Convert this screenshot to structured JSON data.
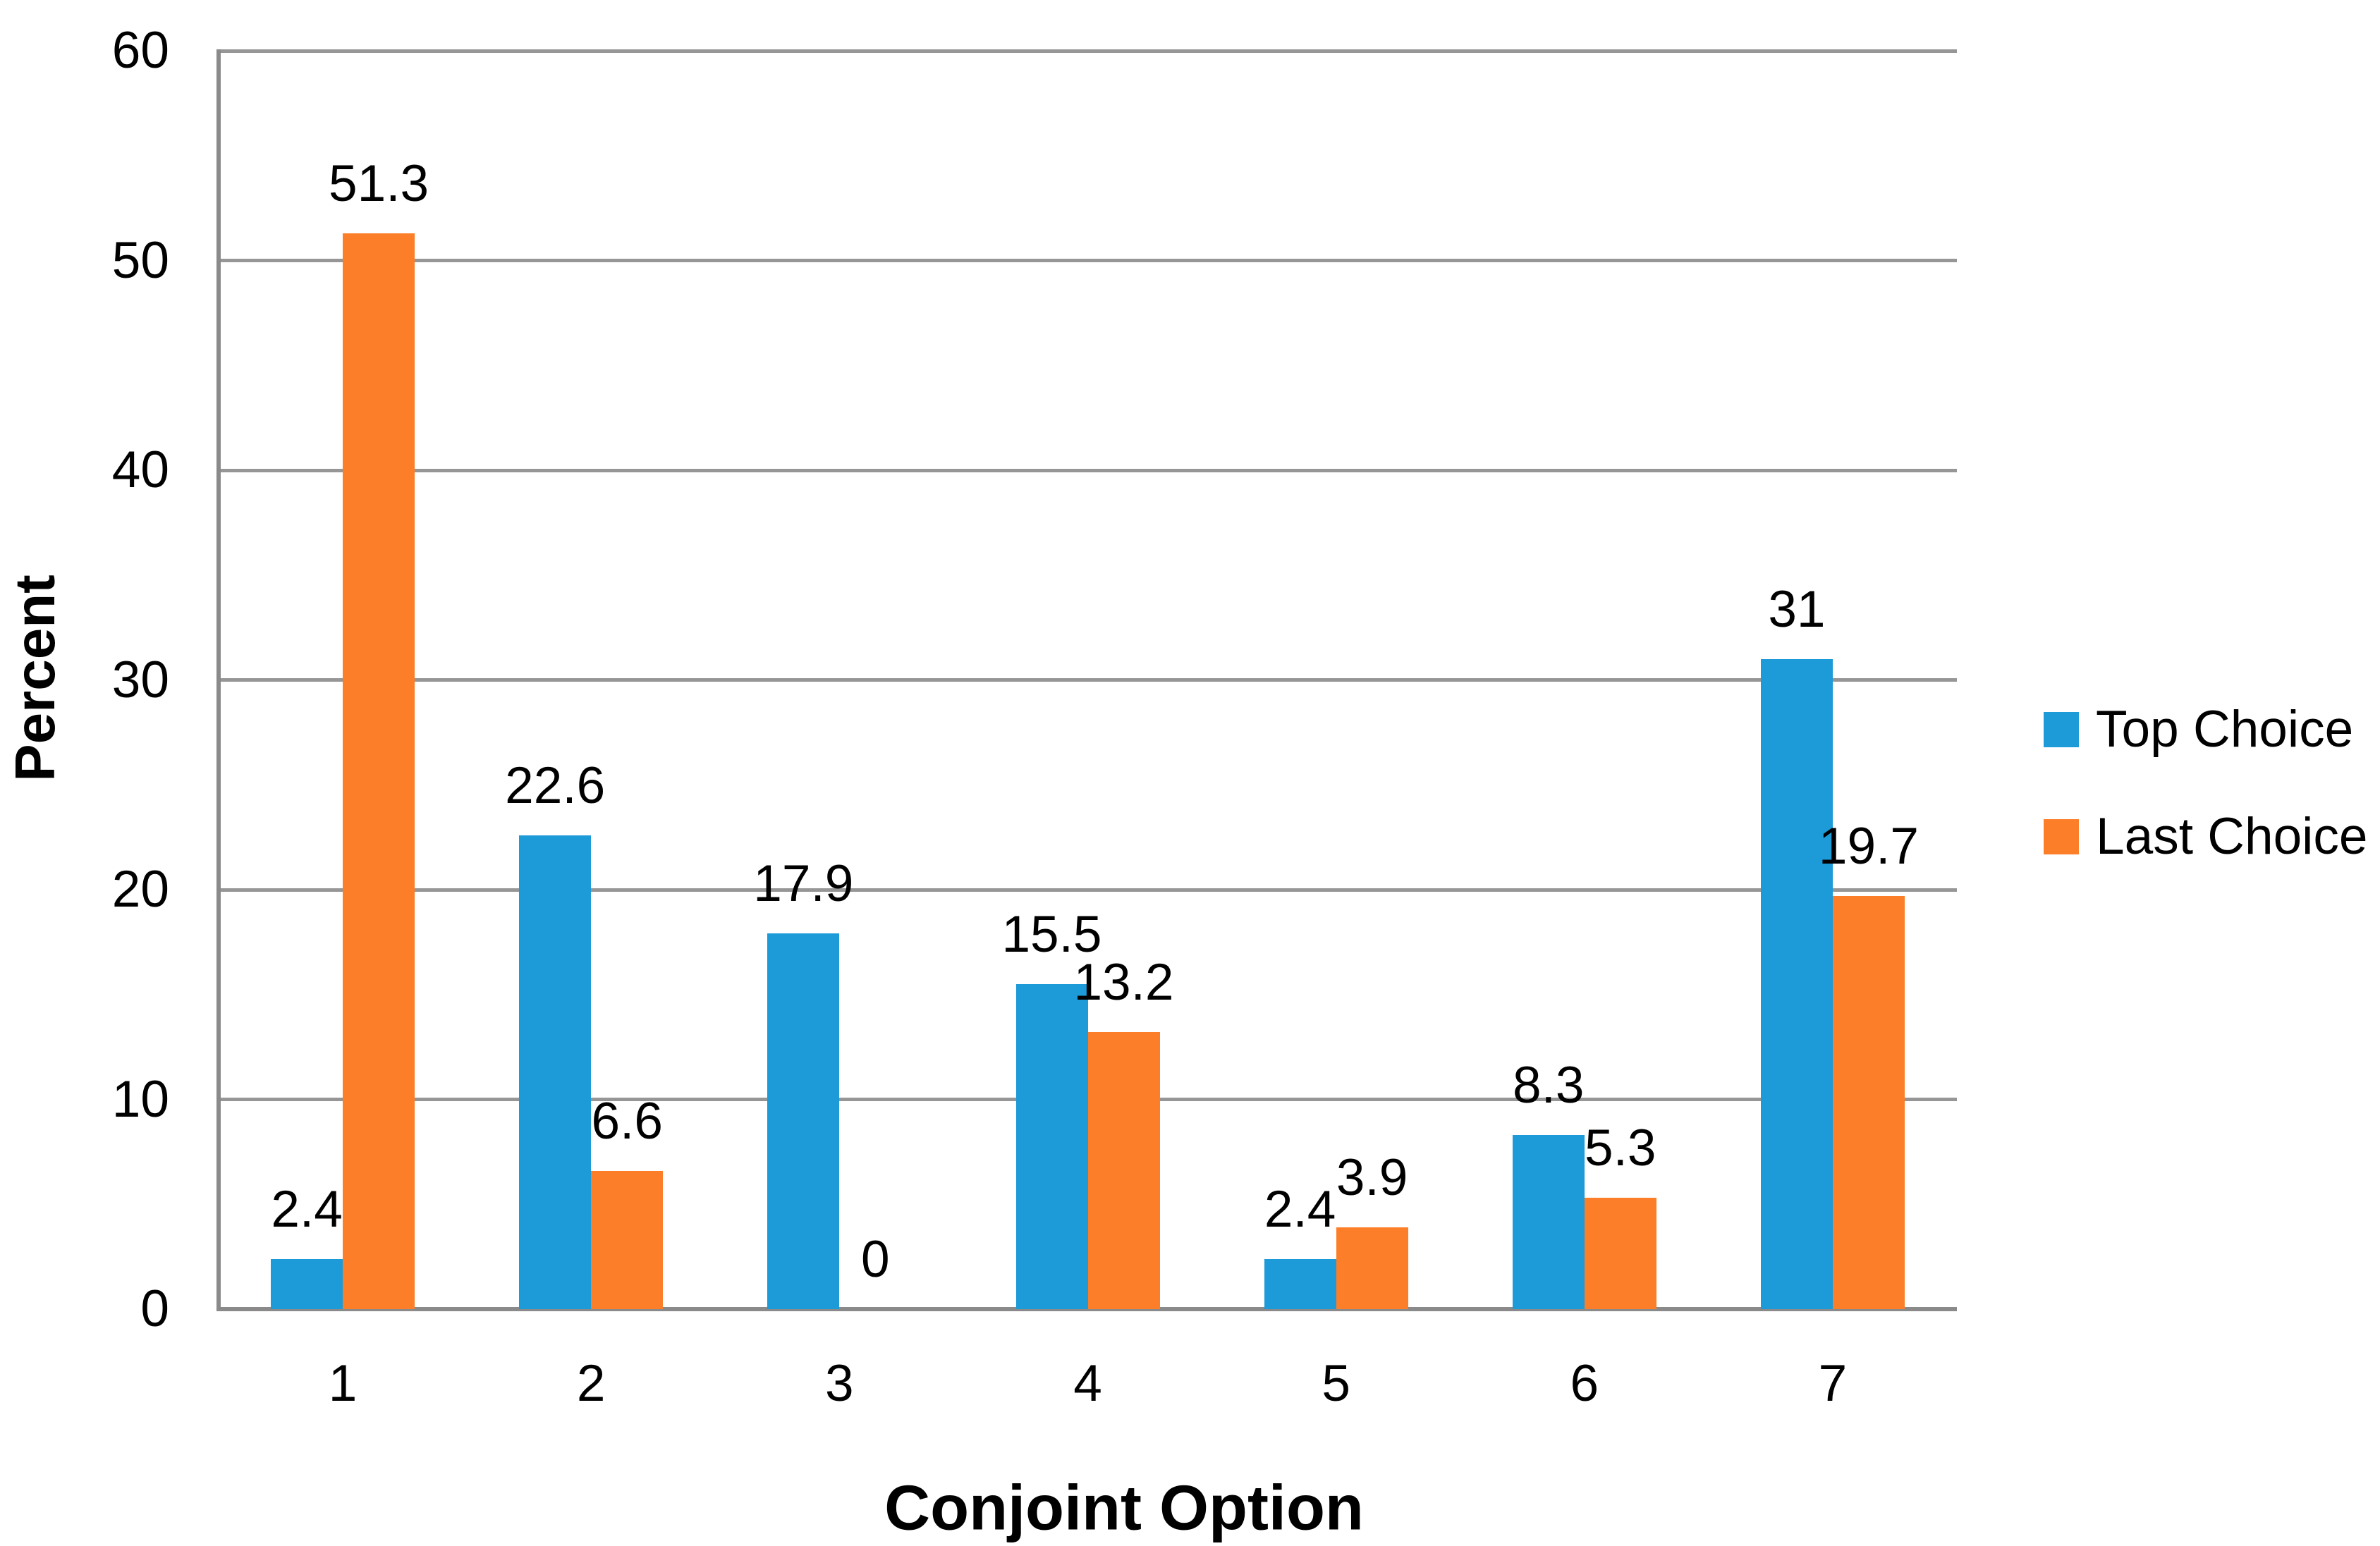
{
  "chart_data": {
    "type": "bar",
    "categories": [
      "1",
      "2",
      "3",
      "4",
      "5",
      "6",
      "7"
    ],
    "series": [
      {
        "name": "Top Choice",
        "color": "#1D9AD8",
        "values": [
          2.4,
          22.6,
          17.9,
          15.5,
          2.4,
          8.3,
          31
        ]
      },
      {
        "name": "Last Choice",
        "color": "#FD7E28",
        "values": [
          51.3,
          6.6,
          0,
          13.2,
          3.9,
          5.3,
          19.7
        ]
      }
    ],
    "data_labels": {
      "top_choice": [
        "2.4",
        "22.6",
        "17.9",
        "15.5",
        "2.4",
        "8.3",
        "31"
      ],
      "last_choice": [
        "51.3",
        "6.6",
        "0",
        "13.2",
        "3.9",
        "5.3",
        "19.7"
      ]
    },
    "title": "",
    "xlabel": "Conjoint Option",
    "ylabel": "Percent",
    "ylim": [
      0,
      60
    ],
    "ytick_step": 10,
    "yticks": [
      "0",
      "10",
      "20",
      "30",
      "40",
      "50",
      "60"
    ],
    "grid": true,
    "legend_position": "right"
  },
  "colors": {
    "background": "#ffffff",
    "gridline": "#969696",
    "axis_line": "#8a8a8a",
    "text": "#000000",
    "series_top_choice": "#1D9AD8",
    "series_last_choice": "#FD7E28"
  }
}
